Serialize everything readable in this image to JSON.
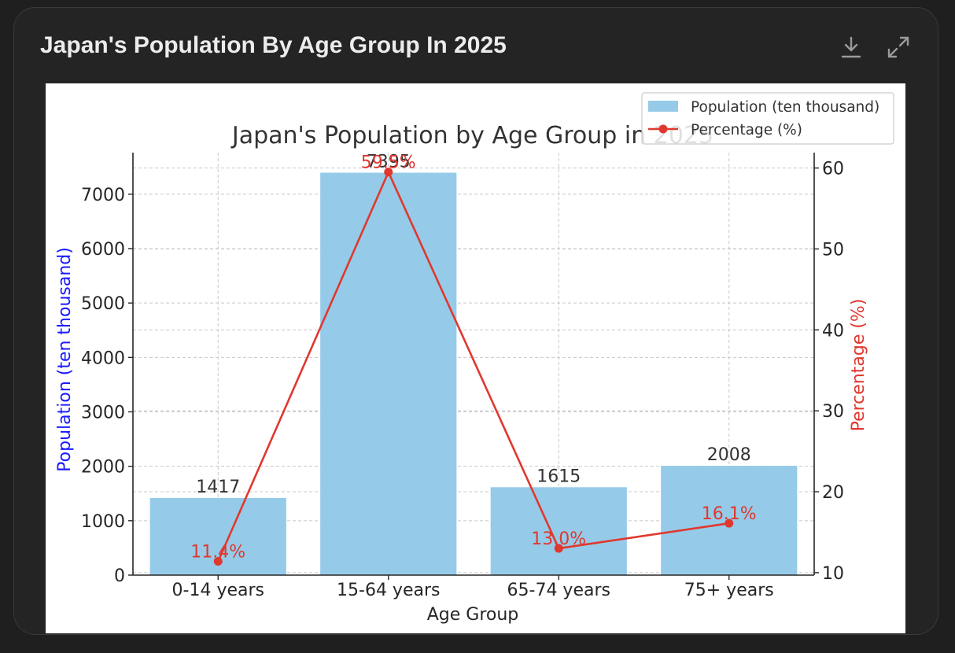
{
  "card": {
    "title": "Japan's Population By Age Group In 2025",
    "download_icon": "download-icon",
    "expand_icon": "expand-icon"
  },
  "colors": {
    "bar": "#95cbe8",
    "line": "#e0382f",
    "left_axis_label": "#1a1aff",
    "right_axis_label": "#e0382f",
    "grid": "#c8c8c8"
  },
  "chart_data": {
    "type": "bar",
    "title": "Japan's Population by Age Group in 2025",
    "xlabel": "Age Group",
    "ylabel": "Population (ten thousand)",
    "y2label": "Percentage (%)",
    "categories": [
      "0-14 years",
      "15-64 years",
      "65-74 years",
      "75+ years"
    ],
    "ylim": [
      0,
      7764
    ],
    "y2lim": [
      9.7,
      61.9
    ],
    "yticks": [
      0,
      1000,
      2000,
      3000,
      4000,
      5000,
      6000,
      7000
    ],
    "y2ticks": [
      10,
      20,
      30,
      40,
      50,
      60
    ],
    "grid": true,
    "legend_position": "top-right",
    "series": [
      {
        "name": "Population (ten thousand)",
        "kind": "bar",
        "axis": "left",
        "values": [
          1417,
          7395,
          1615,
          2008
        ],
        "labels": [
          "1417",
          "7395",
          "1615",
          "2008"
        ]
      },
      {
        "name": "Percentage (%)",
        "kind": "line",
        "axis": "right",
        "values": [
          11.4,
          59.5,
          13.0,
          16.1
        ],
        "labels": [
          "11.4%",
          "59.5%",
          "13.0%",
          "16.1%"
        ]
      }
    ]
  }
}
